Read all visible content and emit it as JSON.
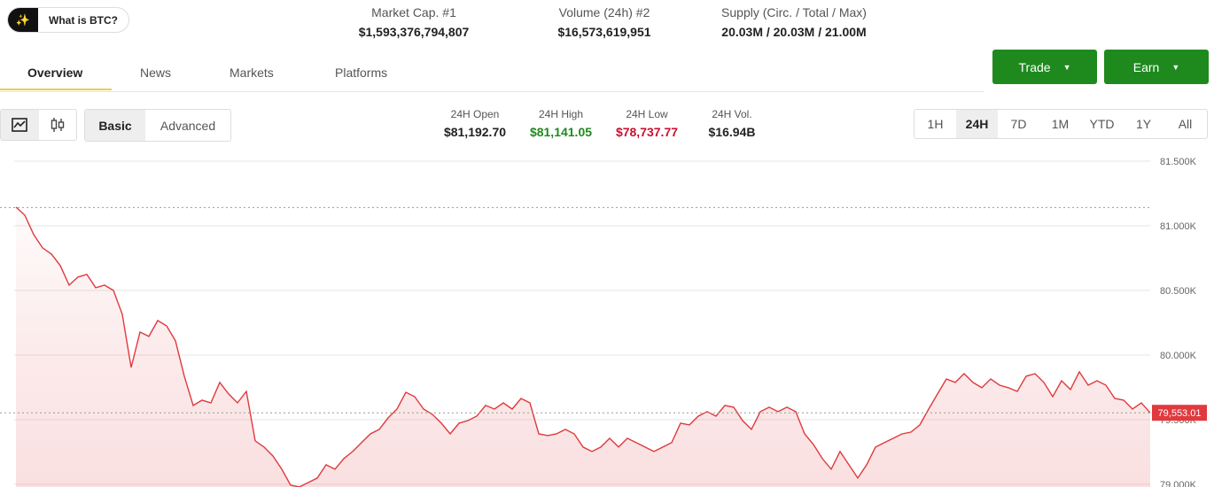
{
  "header": {
    "about_button": "What is BTC?",
    "stats": [
      {
        "label": "Market Cap. #1",
        "value": "$1,593,376,794,807"
      },
      {
        "label": "Volume (24h) #2",
        "value": "$16,573,619,951"
      },
      {
        "label": "Supply (Circ. / Total / Max)",
        "value": "20.03M / 20.03M / 21.00M"
      }
    ]
  },
  "tabs": [
    "Overview",
    "News",
    "Markets",
    "Platforms"
  ],
  "actions": [
    "Trade",
    "Earn"
  ],
  "chart_styles": [
    "Basic",
    "Advanced"
  ],
  "day_stats": [
    {
      "label": "24H Open",
      "value": "$81,192.70"
    },
    {
      "label": "24H High",
      "value": "$81,141.05"
    },
    {
      "label": "24H Low",
      "value": "$78,737.77"
    },
    {
      "label": "24H Vol.",
      "value": "$16.94B"
    }
  ],
  "ranges": [
    "1H",
    "24H",
    "7D",
    "1M",
    "YTD",
    "1Y",
    "All"
  ],
  "chart_data": {
    "type": "line",
    "color": "#e0393e",
    "grid": true,
    "ylim": [
      78979,
      81582
    ],
    "yticks": [
      {
        "value": 79000,
        "label": "79.000K"
      },
      {
        "value": 79500,
        "label": "79.500K"
      },
      {
        "value": 80000,
        "label": "80.000K"
      },
      {
        "value": 80500,
        "label": "80.500K"
      },
      {
        "value": 81000,
        "label": "81.000K"
      },
      {
        "value": 81500,
        "label": "81.500K"
      }
    ],
    "high_line": 81141.05,
    "last_price": {
      "value": 79553.01,
      "label": "79,553.01"
    },
    "values": [
      81144,
      81082,
      80932,
      80829,
      80781,
      80692,
      80541,
      80603,
      80623,
      80521,
      80541,
      80500,
      80315,
      79904,
      80178,
      80144,
      80267,
      80226,
      80110,
      79836,
      79610,
      79651,
      79630,
      79788,
      79699,
      79630,
      79719,
      79336,
      79288,
      79219,
      79117,
      78993,
      78980,
      79014,
      79048,
      79151,
      79117,
      79199,
      79254,
      79322,
      79390,
      79425,
      79514,
      79582,
      79712,
      79678,
      79582,
      79541,
      79473,
      79390,
      79473,
      79493,
      79527,
      79610,
      79582,
      79630,
      79582,
      79664,
      79630,
      79390,
      79377,
      79390,
      79425,
      79390,
      79288,
      79254,
      79288,
      79356,
      79288,
      79356,
      79322,
      79288,
      79254,
      79288,
      79322,
      79473,
      79459,
      79527,
      79562,
      79527,
      79610,
      79596,
      79493,
      79425,
      79562,
      79596,
      79562,
      79596,
      79562,
      79390,
      79308,
      79199,
      79117,
      79254,
      79151,
      79048,
      79151,
      79288,
      79322,
      79356,
      79390,
      79404,
      79459,
      79582,
      79699,
      79815,
      79788,
      79856,
      79788,
      79747,
      79815,
      79767,
      79747,
      79719,
      79836,
      79856,
      79788,
      79678,
      79801,
      79733,
      79870,
      79767,
      79801,
      79767,
      79664,
      79651,
      79582,
      79630,
      79553.01
    ]
  }
}
